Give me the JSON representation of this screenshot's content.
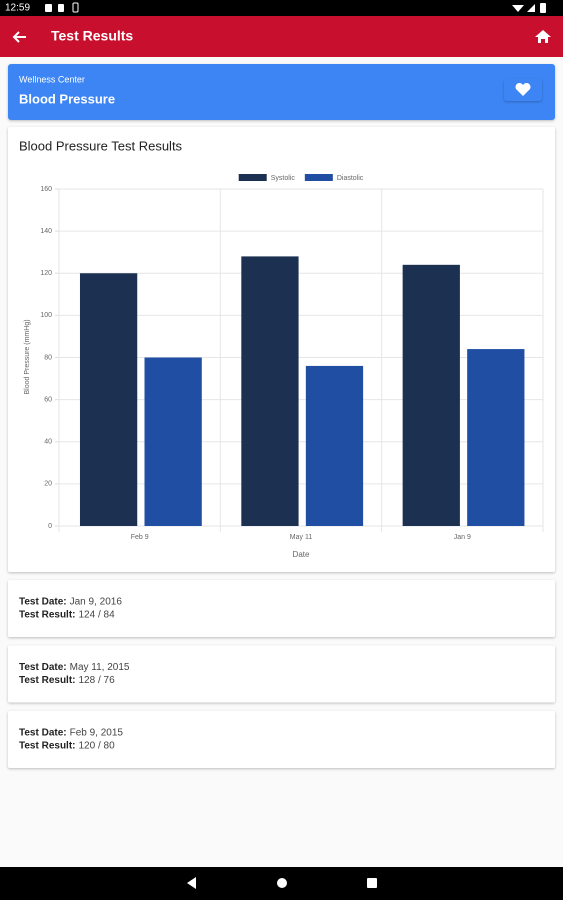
{
  "status_bar": {
    "time": "12:59"
  },
  "app_bar": {
    "title": "Test Results"
  },
  "header": {
    "subtitle": "Wellness Center",
    "title": "Blood Pressure"
  },
  "chart_data": {
    "type": "bar",
    "title": "Blood Pressure Test Results",
    "x_label": "Date",
    "y_label": "Blood Pressure (mmHg)",
    "categories": [
      "Feb 9",
      "May 11",
      "Jan 9"
    ],
    "series": [
      {
        "name": "Systolic",
        "color": "#1c3152",
        "values": [
          120,
          128,
          124
        ]
      },
      {
        "name": "Diastolic",
        "color": "#1f4ea3",
        "values": [
          80,
          76,
          84
        ]
      }
    ],
    "ylim": [
      0,
      160
    ],
    "yticks": [
      0,
      20,
      40,
      60,
      80,
      100,
      120,
      140,
      160
    ],
    "grid": true,
    "legend": "top"
  },
  "results": [
    {
      "date_label": "Test Date:",
      "date": "Jan 9, 2016",
      "result_label": "Test Result:",
      "result": "124 / 84"
    },
    {
      "date_label": "Test Date:",
      "date": "May 11, 2015",
      "result_label": "Test Result:",
      "result": "128 / 76"
    },
    {
      "date_label": "Test Date:",
      "date": "Feb 9, 2015",
      "result_label": "Test Result:",
      "result": "120 / 80"
    }
  ]
}
